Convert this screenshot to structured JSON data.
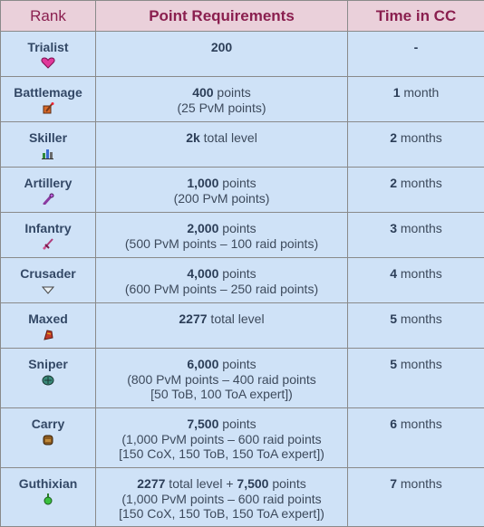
{
  "headers": {
    "rank": "Rank",
    "points": "Point Requirements",
    "time": "Time in CC"
  },
  "rows": [
    {
      "rank": "Trialist",
      "icon": "pink-heart-icon",
      "points_lines": [
        {
          "bold": "200",
          "rest": ""
        }
      ],
      "time_bold": "",
      "time_rest": "-"
    },
    {
      "rank": "Battlemage",
      "icon": "battlemage-staff-icon",
      "points_lines": [
        {
          "bold": "400",
          "rest": " points"
        },
        {
          "bold": "",
          "rest": "(25 PvM points)"
        }
      ],
      "time_bold": "1",
      "time_rest": " month"
    },
    {
      "rank": "Skiller",
      "icon": "skill-bars-icon",
      "points_lines": [
        {
          "bold": "2k",
          "rest": " total level"
        }
      ],
      "time_bold": "2",
      "time_rest": " months"
    },
    {
      "rank": "Artillery",
      "icon": "artillery-icon",
      "points_lines": [
        {
          "bold": "1,000",
          "rest": " points"
        },
        {
          "bold": "",
          "rest": "(200 PvM points)"
        }
      ],
      "time_bold": "2",
      "time_rest": " months"
    },
    {
      "rank": "Infantry",
      "icon": "infantry-sword-icon",
      "points_lines": [
        {
          "bold": "2,000",
          "rest": " points"
        },
        {
          "bold": "",
          "rest": "(500 PvM points – 100 raid points)"
        }
      ],
      "time_bold": "3",
      "time_rest": " months"
    },
    {
      "rank": "Crusader",
      "icon": "crusader-shield-icon",
      "points_lines": [
        {
          "bold": "4,000",
          "rest": " points"
        },
        {
          "bold": "",
          "rest": "(600 PvM points – 250 raid points)"
        }
      ],
      "time_bold": "4",
      "time_rest": " months"
    },
    {
      "rank": "Maxed",
      "icon": "maxed-cape-icon",
      "points_lines": [
        {
          "bold": "2277",
          "rest": " total level"
        }
      ],
      "time_bold": "5",
      "time_rest": " months"
    },
    {
      "rank": "Sniper",
      "icon": "sniper-shell-icon",
      "points_lines": [
        {
          "bold": "6,000",
          "rest": " points"
        },
        {
          "bold": "",
          "rest": "(800 PvM points – 400 raid points"
        },
        {
          "bold": "",
          "rest": "[50 ToB, 100 ToA expert])"
        }
      ],
      "time_bold": "5",
      "time_rest": " months"
    },
    {
      "rank": "Carry",
      "icon": "carry-backpack-icon",
      "points_lines": [
        {
          "bold": "7,500",
          "rest": " points"
        },
        {
          "bold": "",
          "rest": "(1,000 PvM points – 600 raid points"
        },
        {
          "bold": "",
          "rest": "[150 CoX, 150 ToB, 150 ToA expert])"
        }
      ],
      "time_bold": "6",
      "time_rest": " months"
    },
    {
      "rank": "Guthixian",
      "icon": "guthix-potion-icon",
      "points_lines": [
        {
          "bold": "2277",
          "rest": " total level + ",
          "bold2": "7,500",
          "rest2": " points"
        },
        {
          "bold": "",
          "rest": "(1,000 PvM points – 600 raid points"
        },
        {
          "bold": "",
          "rest": "[150 CoX, 150 ToB, 150 ToA expert])"
        }
      ],
      "time_bold": "7",
      "time_rest": " months"
    }
  ]
}
